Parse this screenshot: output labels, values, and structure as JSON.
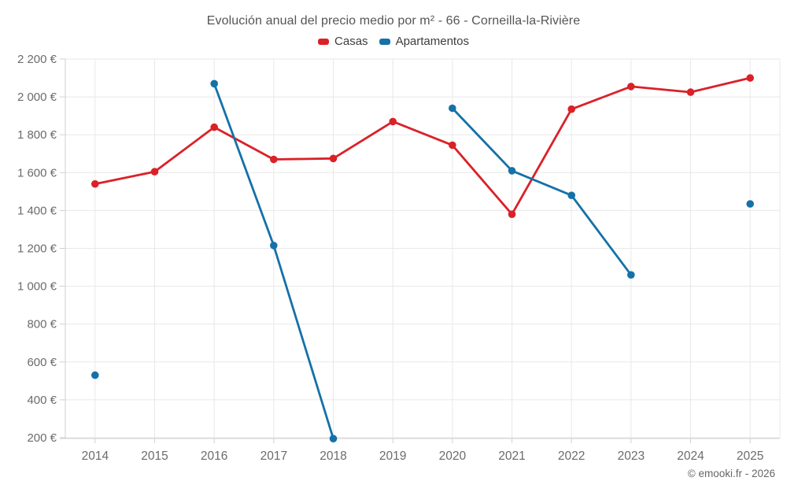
{
  "title": "Evolución anual del precio medio por m² - 66 - Corneilla-la-Rivière",
  "footer": {
    "copyright": "© emooki.fr - 2026"
  },
  "chart_data": {
    "type": "line",
    "title": "Evolución anual del precio medio por m² - 66 - Corneilla-la-Rivière",
    "categories": [
      "2014",
      "2015",
      "2016",
      "2017",
      "2018",
      "2019",
      "2020",
      "2021",
      "2022",
      "2023",
      "2024",
      "2025"
    ],
    "series": [
      {
        "name": "Casas",
        "color": "#da2128",
        "values": [
          1540,
          1605,
          1840,
          1670,
          1675,
          1870,
          1745,
          1380,
          1935,
          2055,
          2025,
          2100
        ]
      },
      {
        "name": "Apartamentos",
        "color": "#1571a8",
        "values": [
          530,
          null,
          2070,
          1215,
          195,
          null,
          1940,
          1610,
          1480,
          1060,
          null,
          1435
        ]
      }
    ],
    "ylim": [
      200,
      2200
    ],
    "ytick_step": 200,
    "ytick_labels": [
      "200 €",
      "400 €",
      "600 €",
      "800 €",
      "1 000 €",
      "1 200 €",
      "1 400 €",
      "1 600 €",
      "1 800 €",
      "2 000 €",
      "2 200 €"
    ],
    "xlabel": "",
    "ylabel": "",
    "grid": true,
    "legend_position": "top",
    "colors": {
      "grid_line": "#e8e8e8",
      "axis_line": "#d0d0d0",
      "tick_label": "#6b6b6b",
      "title_text": "#555555",
      "legend_text": "#3d3d3d",
      "background": "#ffffff"
    }
  }
}
